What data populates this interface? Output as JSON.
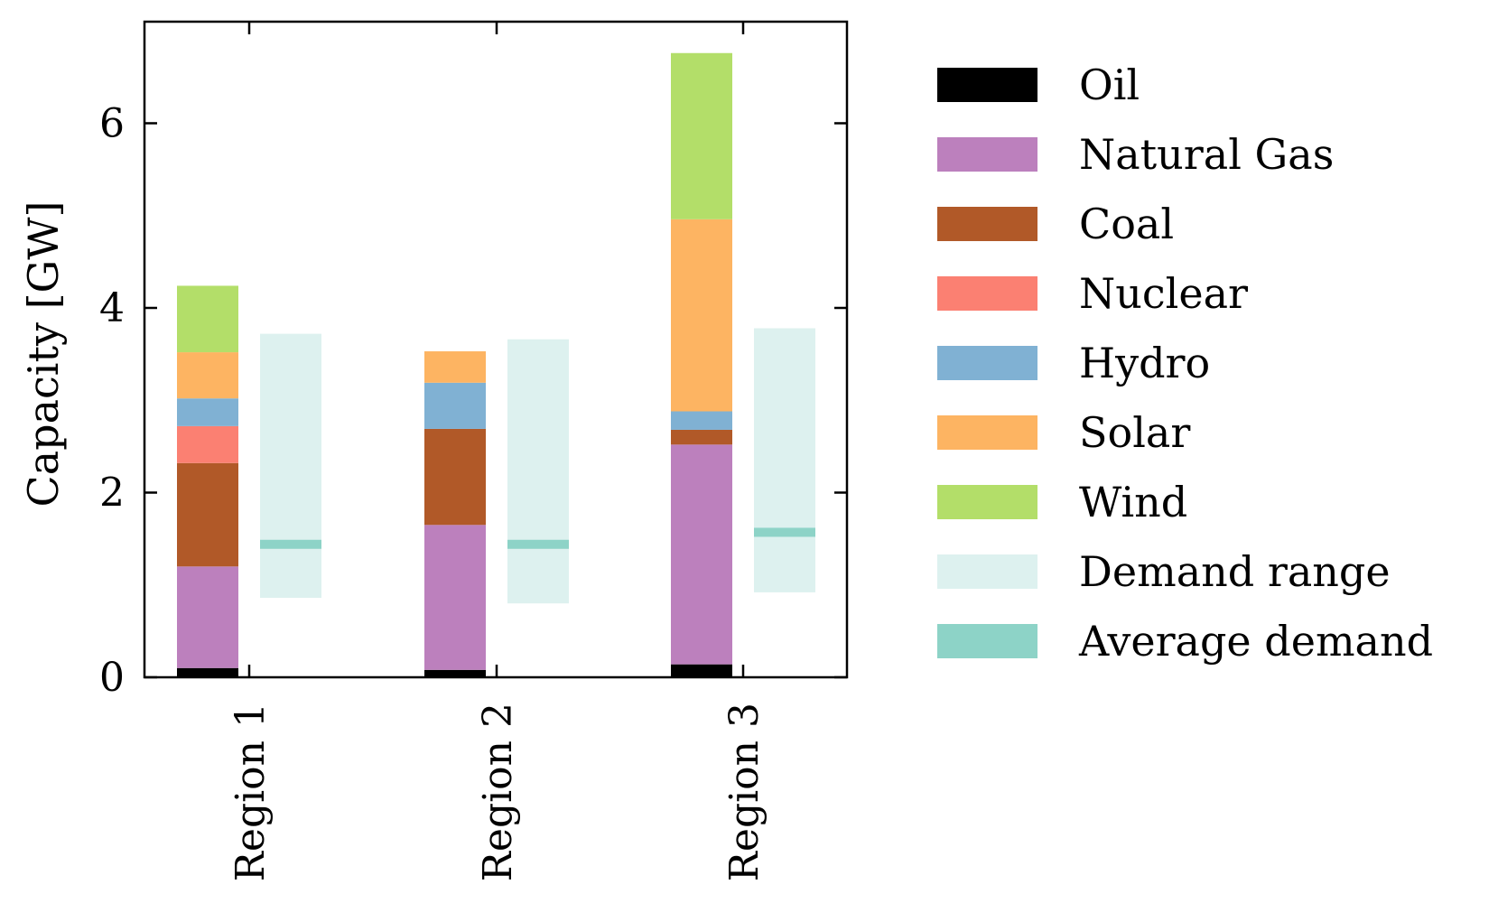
{
  "chart_data": {
    "type": "bar",
    "stacked": true,
    "title": "",
    "xlabel": "",
    "ylabel": "Capacity [GW]",
    "ylim": [
      0,
      7.1
    ],
    "yticks": [
      0,
      2,
      4,
      6
    ],
    "categories": [
      "Region 1",
      "Region 2",
      "Region 3"
    ],
    "series": [
      {
        "name": "Oil",
        "color": "#000000",
        "values": [
          0.1,
          0.08,
          0.14
        ]
      },
      {
        "name": "Natural Gas",
        "color": "#bc80bd",
        "values": [
          1.1,
          1.57,
          2.38
        ]
      },
      {
        "name": "Coal",
        "color": "#b15928",
        "values": [
          1.12,
          1.04,
          0.16
        ]
      },
      {
        "name": "Nuclear",
        "color": "#fb8072",
        "values": [
          0.4,
          0.0,
          0.0
        ]
      },
      {
        "name": "Hydro",
        "color": "#80b1d3",
        "values": [
          0.3,
          0.5,
          0.2
        ]
      },
      {
        "name": "Solar",
        "color": "#fdb462",
        "values": [
          0.5,
          0.34,
          2.08
        ]
      },
      {
        "name": "Wind",
        "color": "#b3de69",
        "values": [
          0.72,
          0.0,
          1.8
        ]
      }
    ],
    "demand": {
      "range_name": "Demand range",
      "range_color": "#ddf1ef",
      "average_name": "Average demand",
      "average_color": "#8dd3c7",
      "min": [
        0.86,
        0.8,
        0.92
      ],
      "max": [
        3.72,
        3.66,
        3.78
      ],
      "average": [
        1.44,
        1.44,
        1.57
      ]
    },
    "legend": {
      "placement": "right-outside",
      "entries": [
        "Oil",
        "Natural Gas",
        "Coal",
        "Nuclear",
        "Hydro",
        "Solar",
        "Wind",
        "Demand range",
        "Average demand"
      ]
    }
  }
}
